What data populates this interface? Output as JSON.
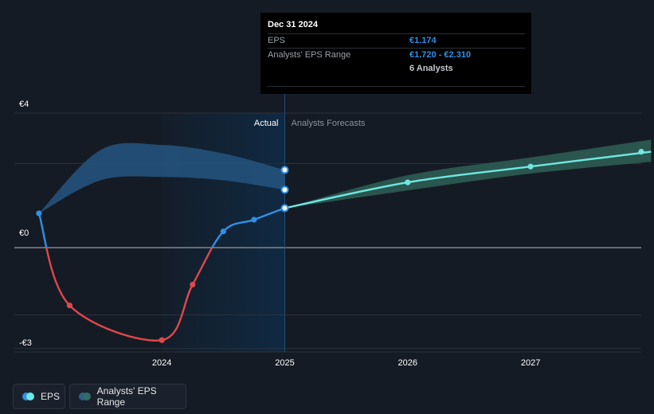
{
  "tooltip": {
    "title": "Dec 31 2024",
    "rows": [
      {
        "label": "EPS",
        "value": "€1.174"
      },
      {
        "label": "Analysts' EPS Range",
        "value": "€1.720 - €2.310"
      },
      {
        "label": "",
        "value": "6 Analysts"
      }
    ]
  },
  "labels": {
    "actual": "Actual",
    "forecast": "Analysts Forecasts"
  },
  "legend": [
    {
      "label": "EPS",
      "color_a": "#2e90e6",
      "color_b": "#6ee7df"
    },
    {
      "label": "Analysts' EPS Range",
      "color_a": "#2d5f8a",
      "color_b": "#2f6d66"
    }
  ],
  "colors": {
    "actual_positive": "#2e90e6",
    "actual_negative": "#e0474c",
    "forecast": "#6ee7df",
    "past_range": "#24527c",
    "forecast_range": "#2c5852",
    "highlight": "#0f2a44"
  },
  "chart_data": {
    "type": "line",
    "y_ticks": [
      {
        "value": 4,
        "label": "€4"
      },
      {
        "value": 0,
        "label": "€0"
      },
      {
        "value": -3,
        "label": "-€3"
      }
    ],
    "x_ticks": [
      {
        "value": 2024.0,
        "label": "2024"
      },
      {
        "value": 2025.0,
        "label": "2025"
      },
      {
        "value": 2026.0,
        "label": "2026"
      },
      {
        "value": 2027.0,
        "label": "2027"
      }
    ],
    "xlim": [
      2022.8,
      2027.9
    ],
    "ylim": [
      -3.1,
      4.0
    ],
    "actual_eps": [
      {
        "x": 2023.0,
        "y": 1.02
      },
      {
        "x": 2023.25,
        "y": -1.72
      },
      {
        "x": 2024.0,
        "y": -2.75
      },
      {
        "x": 2024.25,
        "y": -1.1
      },
      {
        "x": 2024.5,
        "y": 0.48
      },
      {
        "x": 2024.75,
        "y": 0.83
      },
      {
        "x": 2025.0,
        "y": 1.174
      }
    ],
    "forecast_eps": [
      {
        "x": 2025.0,
        "y": 1.174
      },
      {
        "x": 2026.0,
        "y": 1.94
      },
      {
        "x": 2027.0,
        "y": 2.41
      },
      {
        "x": 2027.98,
        "y": 2.85
      }
    ],
    "past_range": [
      {
        "x": 2023.0,
        "low": 1.02,
        "high": 1.02
      },
      {
        "x": 2023.5,
        "low": 2.0,
        "high": 2.9
      },
      {
        "x": 2024.0,
        "low": 2.1,
        "high": 3.05
      },
      {
        "x": 2024.5,
        "low": 2.0,
        "high": 2.8
      },
      {
        "x": 2025.0,
        "low": 1.72,
        "high": 2.31
      }
    ],
    "forecast_range": [
      {
        "x": 2025.0,
        "low": 1.174,
        "high": 1.174
      },
      {
        "x": 2026.0,
        "low": 1.7,
        "high": 2.15
      },
      {
        "x": 2027.0,
        "low": 2.2,
        "high": 2.68
      },
      {
        "x": 2027.98,
        "low": 2.55,
        "high": 3.21
      }
    ]
  }
}
